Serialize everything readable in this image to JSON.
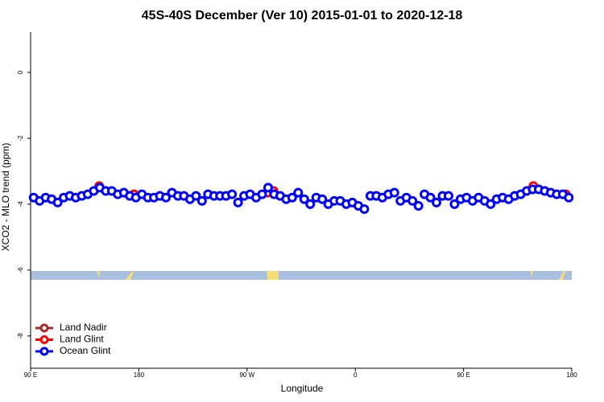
{
  "chart_data": {
    "type": "scatter",
    "title": "45S-40S December (Ver 10)   2015-01-01 to 2020-12-18",
    "xlabel": "Longitude",
    "ylabel": "XCO2 - MLO trend (ppm)",
    "xlim": [
      90,
      540
    ],
    "ylim": [
      -8.98,
      1.22
    ],
    "xticks": [
      {
        "value": 90,
        "label": "90 E"
      },
      180,
      {
        "value": 270,
        "label": "90 W"
      },
      {
        "value": 360,
        "label": "0"
      },
      {
        "value": 450,
        "label": "90 E"
      },
      {
        "value": 540,
        "label": "180"
      }
    ],
    "yticks": [
      0,
      -2,
      -4,
      -6,
      -8
    ],
    "legend": "bottom-left",
    "series": [
      {
        "name": "Land Nadir",
        "color": "#a52a2a",
        "x": [],
        "values": []
      },
      {
        "name": "Land Glint",
        "color": "#ff0000",
        "x": [
          147,
          176,
          287,
          292,
          508,
          535
        ],
        "values": [
          -3.45,
          -3.7,
          -3.65,
          -3.6,
          -3.45,
          -3.7
        ]
      },
      {
        "name": "Ocean Glint",
        "color": "#0000ff",
        "x": [
          92.5,
          97.5,
          102.5,
          107.5,
          112.5,
          117.5,
          122.5,
          127.5,
          132.5,
          137.5,
          142.5,
          147.5,
          152.5,
          157.5,
          162.5,
          167.5,
          172.5,
          177.5,
          182.5,
          187.5,
          192.5,
          197.5,
          202.5,
          207.5,
          212.5,
          217.5,
          222.5,
          227.5,
          232.5,
          237.5,
          242.5,
          247.5,
          252.5,
          257.5,
          262.5,
          267.5,
          272.5,
          277.5,
          282.5,
          287.5,
          292.5,
          297.5,
          302.5,
          307.5,
          312.5,
          317.5,
          322.5,
          327.5,
          332.5,
          337.5,
          342.5,
          347.5,
          352.5,
          357.5,
          362.5,
          367.5,
          372.5,
          377.5,
          382.5,
          387.5,
          392.5,
          397.5,
          402.5,
          407.5,
          412.5,
          417.5,
          422.5,
          427.5,
          432.5,
          437.5,
          442.5,
          447.5,
          452.5,
          457.5,
          462.5,
          467.5,
          472.5,
          477.5,
          482.5,
          487.5,
          492.5,
          497.5,
          502.5,
          507.5,
          512.5,
          517.5,
          522.5,
          527.5,
          532.5,
          537.5
        ],
        "values": [
          -3.8,
          -3.9,
          -3.8,
          -3.85,
          -3.95,
          -3.8,
          -3.75,
          -3.8,
          -3.75,
          -3.7,
          -3.6,
          -3.5,
          -3.6,
          -3.6,
          -3.7,
          -3.65,
          -3.75,
          -3.8,
          -3.7,
          -3.8,
          -3.8,
          -3.75,
          -3.8,
          -3.65,
          -3.75,
          -3.75,
          -3.85,
          -3.75,
          -3.9,
          -3.7,
          -3.75,
          -3.75,
          -3.75,
          -3.7,
          -3.95,
          -3.75,
          -3.7,
          -3.8,
          -3.7,
          -3.5,
          -3.7,
          -3.75,
          -3.85,
          -3.8,
          -3.65,
          -3.85,
          -4.0,
          -3.8,
          -3.85,
          -4.0,
          -3.9,
          -3.9,
          -4.0,
          -3.95,
          -4.05,
          -4.15,
          -3.75,
          -3.75,
          -3.8,
          -3.7,
          -3.65,
          -3.9,
          -3.8,
          -3.9,
          -4.05,
          -3.7,
          -3.8,
          -3.95,
          -3.75,
          -3.75,
          -4.0,
          -3.85,
          -3.8,
          -3.9,
          -3.8,
          -3.9,
          -4.0,
          -3.85,
          -3.8,
          -3.85,
          -3.75,
          -3.7,
          -3.6,
          -3.55,
          -3.55,
          -3.6,
          -3.65,
          -3.7,
          -3.7,
          -3.8
        ]
      }
    ]
  }
}
